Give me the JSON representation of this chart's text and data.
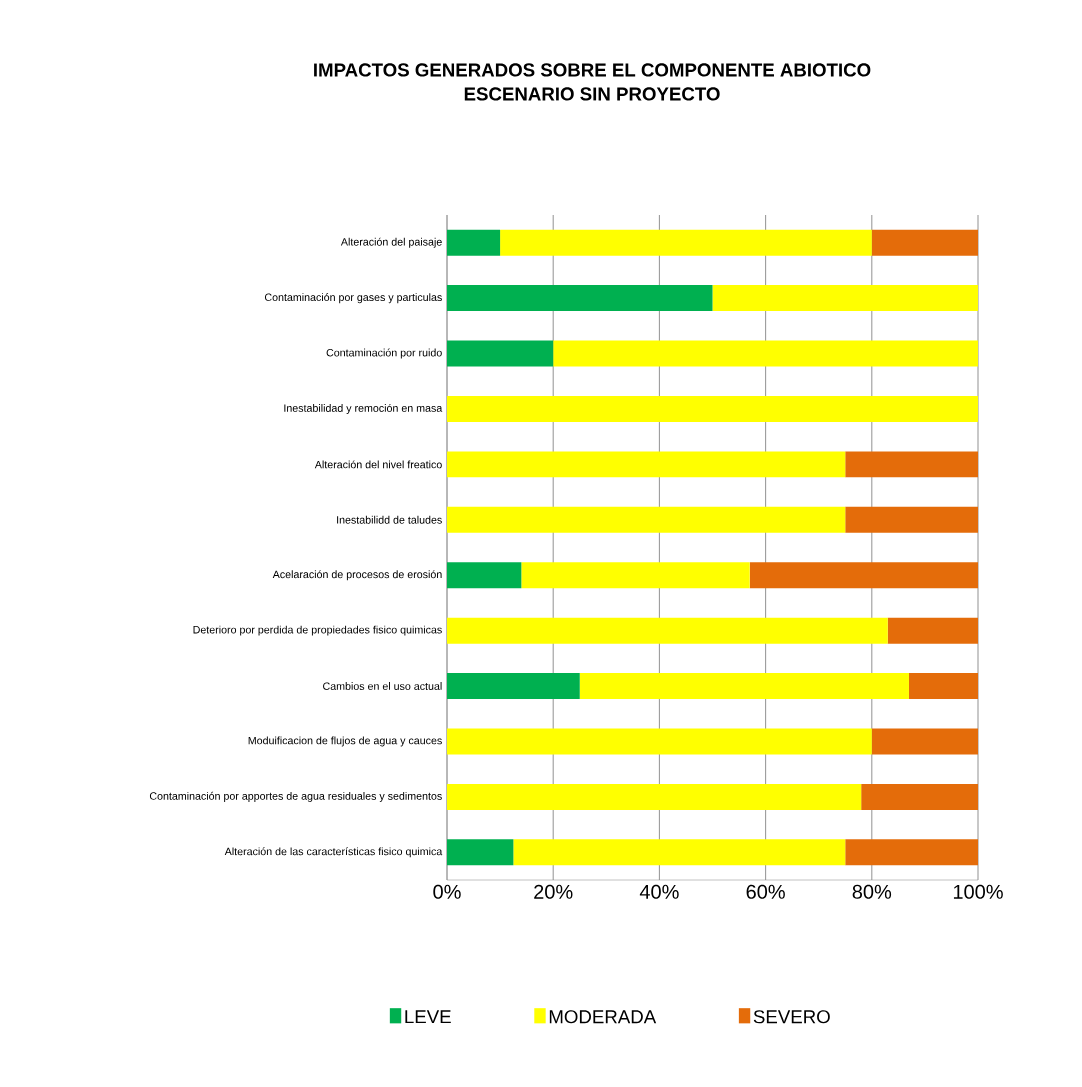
{
  "chart_data": {
    "type": "bar",
    "orientation": "horizontal",
    "stacked": true,
    "title": "IMPACTOS  GENERADOS SOBRE EL COMPONENTE  ABIOTICO",
    "subtitle": "ESCENARIO SIN PROYECTO",
    "categories": [
      "Alteración del paisaje",
      "Contaminación por gases y particulas",
      "Contaminación por ruido",
      "Inestabilidad y remoción en masa",
      "Alteración del nivel freatico",
      "Inestabilidd de taludes",
      "Acelaración de procesos de erosión",
      "Deterioro por perdida de propiedades fisico quimicas",
      "Cambios en el uso actual",
      "Moduificacion de flujos de agua y cauces",
      "Contaminación por apportes de agua residuales y sedimentos",
      "Alteración de las características fisico quimica"
    ],
    "series": [
      {
        "name": "LEVE",
        "color": "#00b050",
        "values": [
          10,
          50,
          20,
          0,
          0,
          0,
          14,
          0,
          25,
          0,
          0,
          12.5
        ]
      },
      {
        "name": "MODERADA",
        "color": "#ffff00",
        "values": [
          70,
          50,
          80,
          100,
          75,
          75,
          43,
          83,
          62,
          80,
          78,
          62.5
        ]
      },
      {
        "name": "SEVERO",
        "color": "#e46c0a",
        "values": [
          20,
          0,
          0,
          0,
          25,
          25,
          43,
          17,
          13,
          20,
          22,
          25
        ]
      }
    ],
    "xlim": [
      0,
      100
    ],
    "xticks": [
      {
        "value": 0,
        "label": "0%"
      },
      {
        "value": 20,
        "label": "20%"
      },
      {
        "value": 40,
        "label": "40%"
      },
      {
        "value": 60,
        "label": "60%"
      },
      {
        "value": 80,
        "label": "80%"
      },
      {
        "value": 100,
        "label": "100%"
      }
    ],
    "grid": "x",
    "legend": "bottom"
  }
}
